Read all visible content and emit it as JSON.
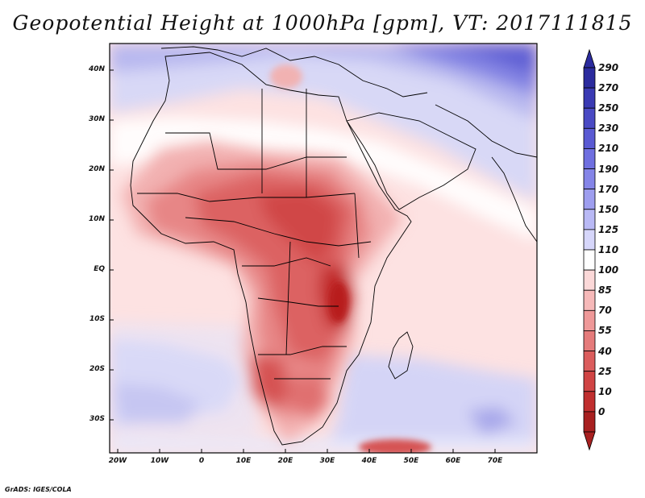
{
  "title": "Geopotential Height at 1000hPa [gpm], VT: 2017111815",
  "credit": "GrADS: IGES/COLA",
  "map": {
    "lat_labels": [
      "40N",
      "30N",
      "20N",
      "10N",
      "EQ",
      "10S",
      "20S",
      "30S"
    ],
    "lon_labels": [
      "20W",
      "10W",
      "0",
      "10E",
      "20E",
      "30E",
      "40E",
      "50E",
      "60E",
      "70E"
    ]
  },
  "colorbar": {
    "levels": [
      "290",
      "270",
      "250",
      "230",
      "210",
      "190",
      "170",
      "150",
      "125",
      "110",
      "100",
      "85",
      "70",
      "55",
      "40",
      "25",
      "10",
      "0"
    ],
    "colors": [
      "#2b2b9e",
      "#3a3ab3",
      "#4a4ac4",
      "#5a5ad3",
      "#6f6fe0",
      "#8585e8",
      "#9e9eef",
      "#b9b9f5",
      "#d6d6fa",
      "#ffffff",
      "#fbd8d8",
      "#f6b9b9",
      "#ef9999",
      "#e57b7b",
      "#db5d5d",
      "#d04444",
      "#c02f2f",
      "#a82020"
    ]
  }
}
